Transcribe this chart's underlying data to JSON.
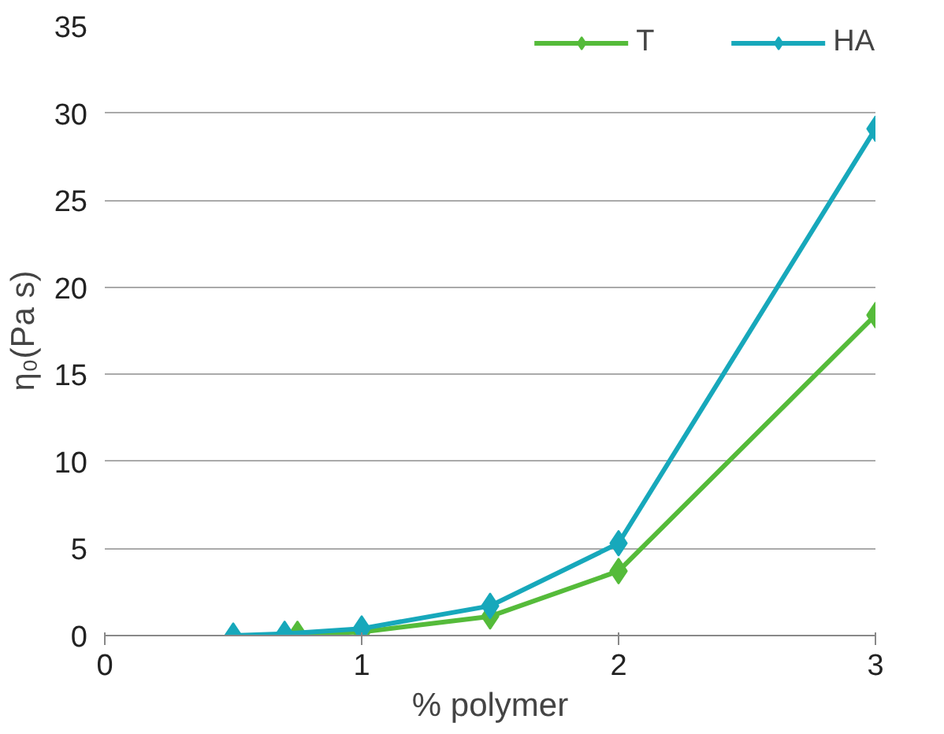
{
  "chart_data": {
    "type": "line",
    "xlabel": "% polymer",
    "ylabel": "η₀(Pa s)",
    "xlim": [
      0,
      3
    ],
    "xticks": [
      0,
      1,
      2,
      3
    ],
    "ylim": [
      0,
      35
    ],
    "yticks": [
      0,
      5,
      10,
      15,
      20,
      25,
      30,
      35
    ],
    "grid": "y",
    "legend": "top right",
    "marker": "diamond",
    "line_style": "solid",
    "series": [
      {
        "name": "T",
        "color": "#55bb3a",
        "x": [
          0.75,
          1,
          1.5,
          2,
          3
        ],
        "values": [
          0.1,
          0.2,
          1.1,
          3.7,
          18.4
        ]
      },
      {
        "name": "HA",
        "color": "#17a8bb",
        "x": [
          0.5,
          0.7,
          1,
          1.5,
          2,
          3
        ],
        "values": [
          0,
          0.1,
          0.4,
          1.7,
          5.3,
          29.1
        ]
      }
    ]
  }
}
